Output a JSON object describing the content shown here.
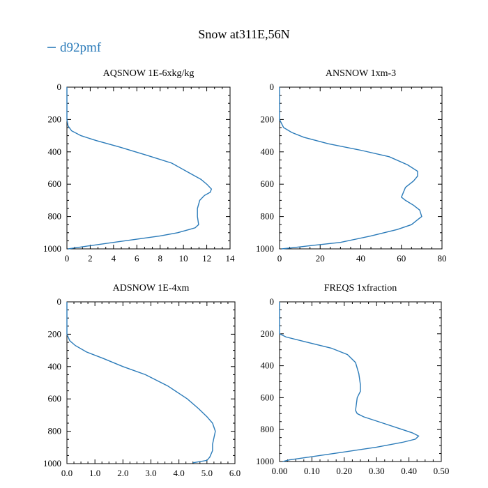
{
  "title": "Snow at311E,56N",
  "legend": {
    "label": "d92pmf",
    "color": "#2b7bb9"
  },
  "chart_data": [
    {
      "type": "line",
      "title": "AQSNOW  1E-6xkg/kg",
      "xlim": [
        0,
        14
      ],
      "ylim": [
        1000,
        0
      ],
      "xticks": [
        "0",
        "2",
        "4",
        "6",
        "8",
        "10",
        "12",
        "14"
      ],
      "yticks": [
        "0",
        "200",
        "400",
        "600",
        "800",
        "1000"
      ],
      "series": [
        {
          "x": [
            0,
            0,
            0.1,
            0.4,
            1.2,
            2.5,
            4.5,
            6.8,
            9.0,
            10.5,
            11.5,
            12.0,
            12.4,
            12.3,
            11.8,
            11.4,
            11.2,
            11.2,
            11.3,
            11.0,
            10.5,
            9.5,
            8.0,
            6.0,
            4.0,
            2.0,
            0.6,
            0.1
          ],
          "y": [
            0,
            200,
            240,
            270,
            300,
            330,
            370,
            420,
            470,
            530,
            570,
            600,
            630,
            650,
            670,
            700,
            750,
            800,
            850,
            870,
            880,
            900,
            920,
            940,
            960,
            980,
            995,
            1000
          ]
        }
      ]
    },
    {
      "type": "line",
      "title": "ANSNOW  1xm-3",
      "xlim": [
        0,
        80
      ],
      "ylim": [
        1000,
        0
      ],
      "xticks": [
        "0",
        "20",
        "40",
        "60",
        "80"
      ],
      "yticks": [
        "0",
        "200",
        "400",
        "600",
        "800",
        "1000"
      ],
      "series": [
        {
          "x": [
            0,
            0,
            2,
            6,
            12,
            24,
            40,
            54,
            63,
            68,
            68,
            66,
            62,
            60,
            62,
            66,
            69,
            70,
            68,
            65,
            58,
            45,
            30,
            15,
            5,
            1
          ],
          "y": [
            0,
            200,
            250,
            280,
            310,
            350,
            390,
            430,
            480,
            520,
            550,
            580,
            620,
            680,
            700,
            730,
            760,
            800,
            820,
            850,
            880,
            920,
            960,
            980,
            995,
            1000
          ]
        }
      ]
    },
    {
      "type": "line",
      "title": "ADSNOW  1E-4xm",
      "xlim": [
        0,
        6
      ],
      "ylim": [
        1000,
        0
      ],
      "xticks": [
        "0.0",
        "1.0",
        "2.0",
        "3.0",
        "4.0",
        "5.0",
        "6.0"
      ],
      "yticks": [
        "0",
        "200",
        "400",
        "600",
        "800",
        "1000"
      ],
      "series": [
        {
          "x": [
            0,
            0,
            0.1,
            0.3,
            0.7,
            1.3,
            2.0,
            2.8,
            3.6,
            4.3,
            4.7,
            5.0,
            5.2,
            5.3,
            5.25,
            5.2,
            5.2,
            5.1,
            5.0,
            4.5
          ],
          "y": [
            0,
            200,
            240,
            270,
            310,
            350,
            400,
            450,
            520,
            600,
            660,
            710,
            750,
            800,
            840,
            880,
            920,
            960,
            980,
            995
          ]
        }
      ]
    },
    {
      "type": "line",
      "title": "FREQS  1xfraction",
      "xlim": [
        0,
        0.5
      ],
      "ylim": [
        1000,
        0
      ],
      "xticks": [
        "0.00",
        "0.10",
        "0.20",
        "0.30",
        "0.40",
        "0.50"
      ],
      "yticks": [
        "0",
        "200",
        "400",
        "600",
        "800",
        "1000"
      ],
      "series": [
        {
          "x": [
            0,
            0,
            0.02,
            0.08,
            0.16,
            0.21,
            0.235,
            0.245,
            0.25,
            0.25,
            0.24,
            0.235,
            0.24,
            0.26,
            0.32,
            0.38,
            0.41,
            0.43,
            0.42,
            0.38,
            0.3,
            0.2,
            0.1,
            0.03,
            0.01
          ],
          "y": [
            0,
            200,
            220,
            250,
            290,
            330,
            380,
            450,
            520,
            560,
            600,
            680,
            700,
            720,
            760,
            800,
            820,
            840,
            860,
            880,
            910,
            940,
            970,
            990,
            1000
          ]
        }
      ]
    }
  ]
}
